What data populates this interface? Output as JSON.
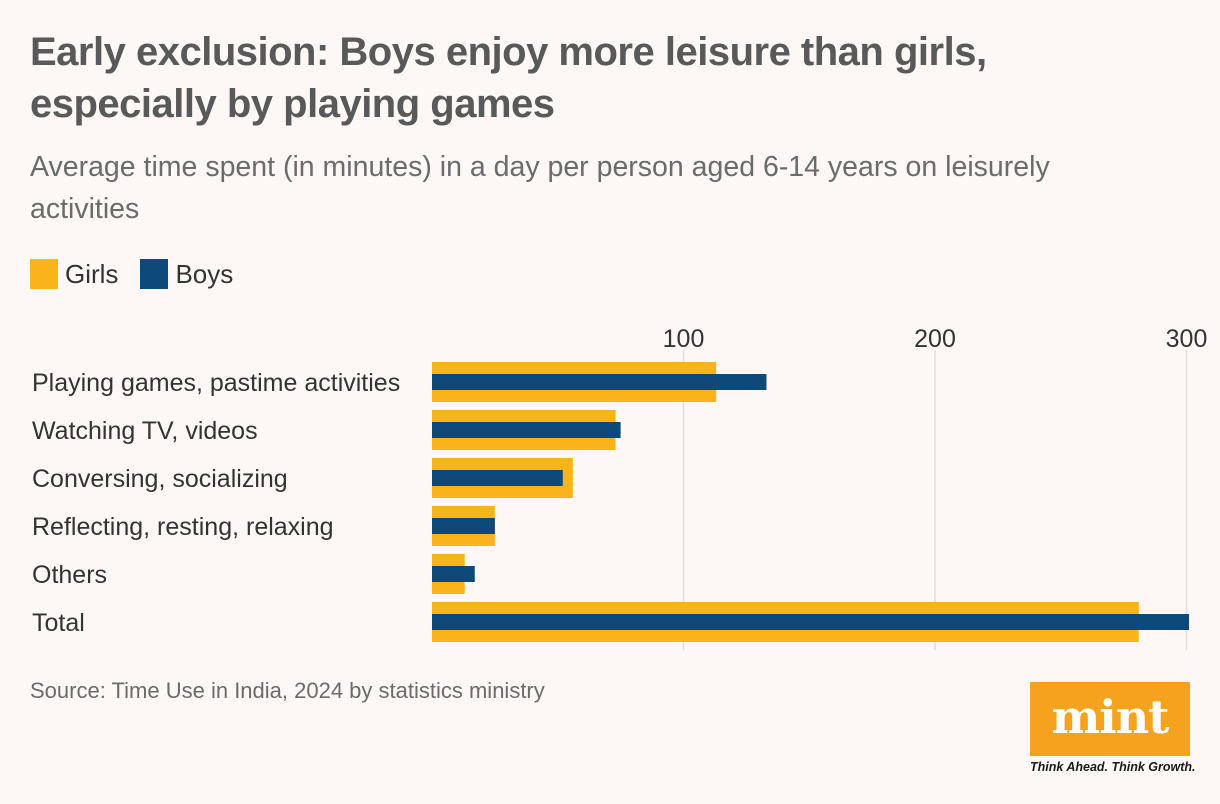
{
  "title": "Early exclusion: Boys enjoy more leisure than girls, especially by playing games",
  "subtitle": "Average time spent (in minutes) in a day per person aged 6-14 years on leisurely activities",
  "legend": {
    "girls": "Girls",
    "boys": "Boys"
  },
  "colors": {
    "girls": "#fbb31b",
    "boys": "#0d4a7a",
    "grid": "#dedede"
  },
  "chart_data": {
    "type": "bar",
    "orientation": "horizontal",
    "categories": [
      "Playing games, pastime activities",
      "Watching TV, videos",
      "Conversing, socializing",
      "Reflecting, resting, relaxing",
      "Others",
      "Total"
    ],
    "series": [
      {
        "name": "Girls",
        "values": [
          113,
          73,
          56,
          25,
          13,
          281
        ]
      },
      {
        "name": "Boys",
        "values": [
          133,
          75,
          52,
          25,
          17,
          301
        ]
      }
    ],
    "xlim": [
      0,
      301
    ],
    "xticks": [
      100,
      200,
      300
    ],
    "xtick_labels": [
      "100",
      "200",
      "300"
    ],
    "grid": true
  },
  "source": "Source: Time Use in India, 2024 by statistics ministry",
  "logo": {
    "name": "mint",
    "tagline": "Think Ahead. Think Growth."
  }
}
